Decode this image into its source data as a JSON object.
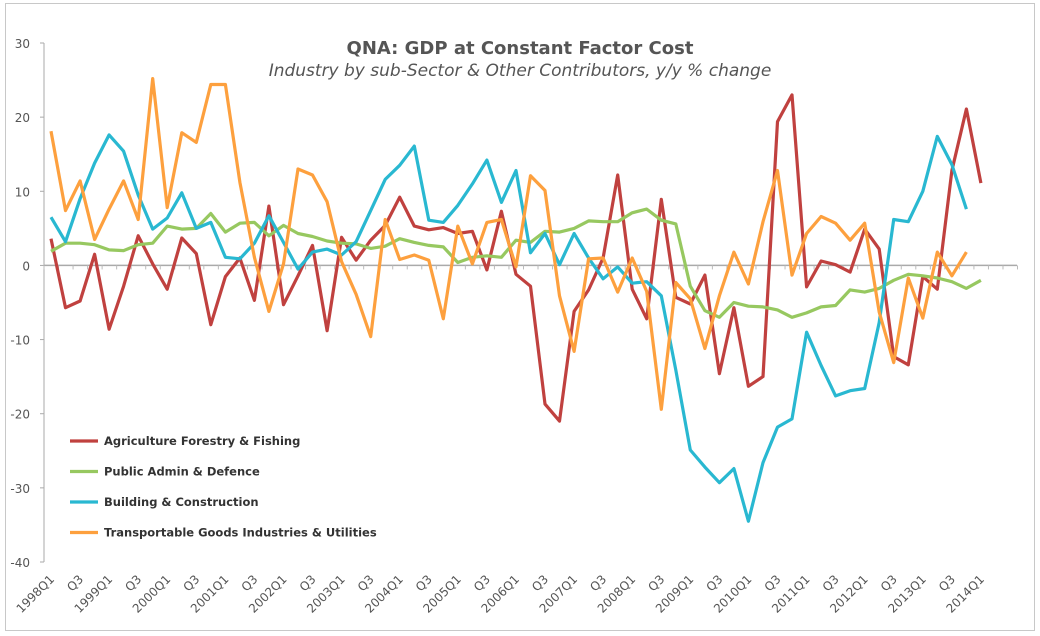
{
  "chart_data": {
    "type": "line",
    "title": "QNA: GDP at Constant Factor Cost",
    "subtitle": "Industry by sub-Sector & Other Contributors, y/y % change",
    "xlabel": "",
    "ylabel": "",
    "ylim": [
      -40,
      30
    ],
    "yticks": [
      30,
      20,
      10,
      0,
      -10,
      -20,
      -30,
      -40
    ],
    "grid": false,
    "legend_position": "bottom-left",
    "x": [
      "1998Q1",
      "Q2",
      "Q3",
      "Q4",
      "1999Q1",
      "Q2",
      "Q3",
      "Q4",
      "2000Q1",
      "Q2",
      "Q3",
      "Q4",
      "2001Q1",
      "Q2",
      "Q3",
      "Q4",
      "2002Q1",
      "Q2",
      "Q3",
      "Q4",
      "2003Q1",
      "Q2",
      "Q3",
      "Q4",
      "2004Q1",
      "Q2",
      "Q3",
      "Q4",
      "2005Q1",
      "Q2",
      "Q3",
      "Q4",
      "2006Q1",
      "Q2",
      "Q3",
      "Q4",
      "2007Q1",
      "Q2",
      "Q3",
      "Q4",
      "2008Q1",
      "Q2",
      "Q3",
      "Q4",
      "2009Q1",
      "Q2",
      "Q3",
      "Q4",
      "2010Q1",
      "Q2",
      "Q3",
      "Q4",
      "2011Q1",
      "Q2",
      "Q3",
      "Q4",
      "2012Q1",
      "Q2",
      "Q3",
      "Q4",
      "2013Q1",
      "Q2",
      "Q3",
      "Q4",
      "2014Q1"
    ],
    "xtick_labels": [
      "1998Q1",
      "Q3",
      "1999Q1",
      "Q3",
      "2000Q1",
      "Q3",
      "2001Q1",
      "Q3",
      "2002Q1",
      "Q3",
      "2003Q1",
      "Q3",
      "2004Q1",
      "Q3",
      "2005Q1",
      "Q3",
      "2006Q1",
      "Q3",
      "2007Q1",
      "Q3",
      "2008Q1",
      "Q3",
      "2009Q1",
      "Q3",
      "2010Q1",
      "Q3",
      "2011Q1",
      "Q3",
      "2012Q1",
      "Q3",
      "2013Q1",
      "Q3",
      "2014Q1"
    ],
    "series": [
      {
        "name": "Agriculture Forestry & Fishing",
        "color": "#c0413f",
        "values": [
          3.6,
          -5.7,
          -4.8,
          1.5,
          -8.6,
          -2.8,
          4.0,
          0.2,
          -3.2,
          3.7,
          1.6,
          -8.0,
          -1.5,
          1.0,
          -4.7,
          8.0,
          -5.3,
          -1.4,
          2.7,
          -8.8,
          3.8,
          0.7,
          3.4,
          5.4,
          9.2,
          5.3,
          4.8,
          5.1,
          4.3,
          4.6,
          -0.6,
          7.3,
          -1.2,
          -2.8,
          -18.7,
          -21.0,
          -6.2,
          -3.3,
          1.0,
          12.2,
          -3.2,
          -7.2,
          8.9,
          -4.3,
          -5.2,
          -1.3,
          -14.6,
          -5.7,
          -16.3,
          -15.0,
          19.4,
          23.0,
          -2.9,
          0.6,
          0.1,
          -0.9,
          4.9,
          2.2,
          -12.3,
          -13.4,
          -1.5,
          -3.2,
          12.8,
          21.1,
          11.1
        ]
      },
      {
        "name": "Public Admin & Defence",
        "color": "#97c860",
        "values": [
          1.9,
          3.0,
          3.0,
          2.8,
          2.1,
          2.0,
          2.8,
          3.0,
          5.3,
          4.9,
          5.0,
          7.0,
          4.5,
          5.7,
          5.8,
          4.0,
          5.4,
          4.3,
          3.9,
          3.3,
          3.0,
          2.9,
          2.3,
          2.6,
          3.6,
          3.1,
          2.7,
          2.5,
          0.4,
          1.1,
          1.3,
          1.1,
          3.4,
          3.1,
          4.6,
          4.5,
          5.0,
          6.0,
          5.9,
          5.9,
          7.1,
          7.6,
          6.1,
          5.6,
          -2.8,
          -6.1,
          -7.0,
          -5.0,
          -5.5,
          -5.6,
          -6.0,
          -7.0,
          -6.4,
          -5.6,
          -5.4,
          -3.3,
          -3.6,
          -3.1,
          -2.0,
          -1.2,
          -1.4,
          -1.7,
          -2.2,
          -3.1,
          -2.0
        ]
      },
      {
        "name": "Building & Construction",
        "color": "#29b8d1",
        "values": [
          6.5,
          3.2,
          9.0,
          13.8,
          17.6,
          15.4,
          9.5,
          4.9,
          6.4,
          9.8,
          5.0,
          5.8,
          1.1,
          0.9,
          3.0,
          6.7,
          3.1,
          -0.5,
          1.8,
          2.2,
          1.4,
          3.2,
          7.4,
          11.6,
          13.5,
          16.1,
          6.1,
          5.8,
          8.1,
          11.0,
          14.2,
          8.5,
          12.8,
          1.7,
          4.3,
          0.1,
          4.3,
          1.0,
          -1.8,
          -0.2,
          -2.4,
          -2.2,
          -4.1,
          -14.1,
          -24.9,
          -27.2,
          -29.3,
          -27.4,
          -34.5,
          -26.6,
          -21.8,
          -20.7,
          -9.0,
          -13.5,
          -17.6,
          -16.9,
          -16.6,
          -7.7,
          6.2,
          5.9,
          10.0,
          17.4,
          13.6,
          7.6,
          null
        ]
      },
      {
        "name": "Transportable Goods Industries & Utilities",
        "color": "#fda03e",
        "values": [
          18.1,
          7.4,
          11.4,
          3.5,
          7.6,
          11.4,
          6.2,
          25.2,
          7.8,
          17.9,
          16.6,
          24.4,
          24.4,
          11.2,
          1.1,
          -6.2,
          0.2,
          13.0,
          12.2,
          8.6,
          0.5,
          -3.9,
          -9.6,
          6.2,
          0.8,
          1.4,
          0.7,
          -7.2,
          5.3,
          0.2,
          5.8,
          6.2,
          -0.2,
          12.1,
          10.1,
          -4.1,
          -11.6,
          0.9,
          1.0,
          -3.6,
          1.0,
          -3.5,
          -19.4,
          -2.3,
          -4.5,
          -11.2,
          -4.1,
          1.8,
          -2.5,
          5.9,
          12.8,
          -1.3,
          4.3,
          6.6,
          5.7,
          3.4,
          5.7,
          -6.3,
          -13.1,
          -1.7,
          -7.1,
          1.8,
          -1.4,
          1.8,
          null
        ]
      }
    ]
  }
}
